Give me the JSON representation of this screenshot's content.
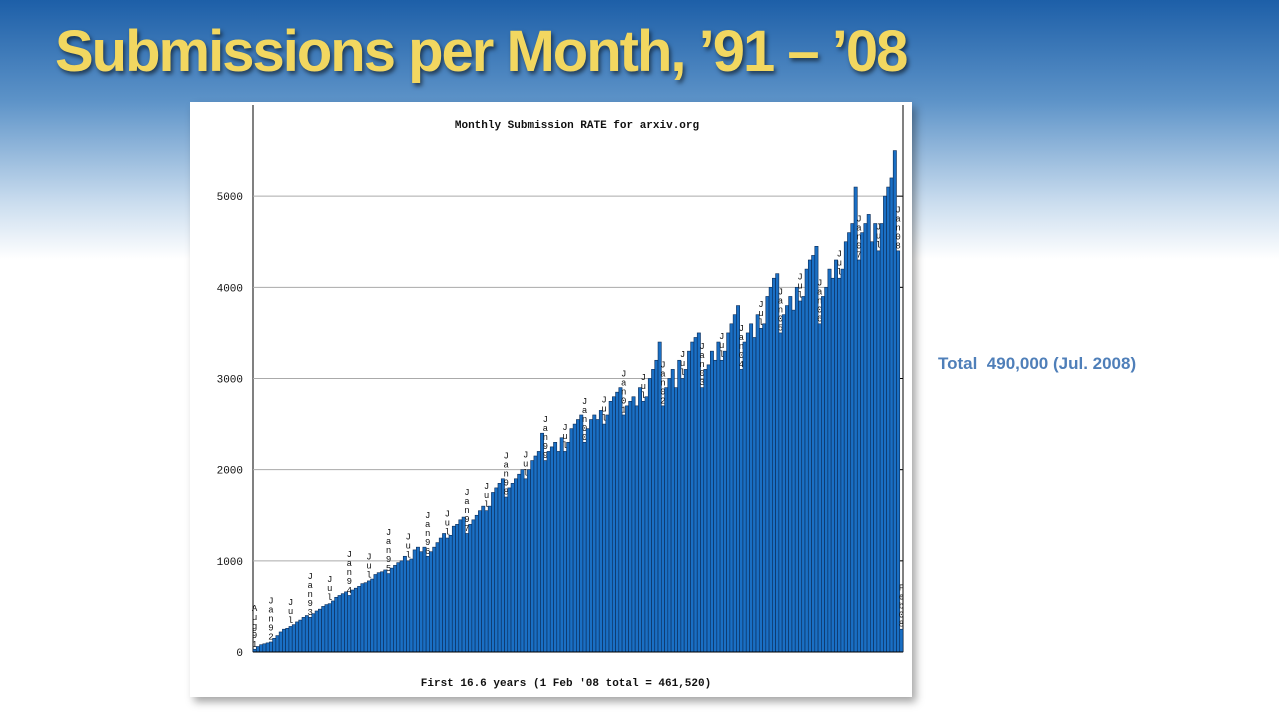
{
  "slide_title": "Submissions per Month, ’91 – ’08",
  "side_note": "Total  490,000 (Jul. 2008)",
  "chart_data": {
    "type": "bar",
    "title": "Monthly Submission RATE for arxiv.org",
    "x_label": "First 16.6 years (1 Feb '08 total = 461,520)",
    "color": "#1a6fc4",
    "grid": true,
    "ylim": [
      0,
      6000
    ],
    "yticks": [
      0,
      1000,
      2000,
      3000,
      4000,
      5000
    ],
    "categories": [
      "Aug91",
      null,
      null,
      null,
      null,
      "Jan92",
      null,
      null,
      null,
      null,
      null,
      "Jul",
      null,
      null,
      null,
      null,
      null,
      "Jan93",
      null,
      null,
      null,
      null,
      null,
      "Jul",
      null,
      null,
      null,
      null,
      null,
      "Jan94",
      null,
      null,
      null,
      null,
      null,
      "Jul",
      null,
      null,
      null,
      null,
      null,
      "Jan95",
      null,
      null,
      null,
      null,
      null,
      "Jul",
      null,
      null,
      null,
      null,
      null,
      "Jan96",
      null,
      null,
      null,
      null,
      null,
      "Jul",
      null,
      null,
      null,
      null,
      null,
      "Jan97",
      null,
      null,
      null,
      null,
      null,
      "Jul",
      null,
      null,
      null,
      null,
      null,
      "Jan98",
      null,
      null,
      null,
      null,
      null,
      "Jul",
      null,
      null,
      null,
      null,
      null,
      "Jan99",
      null,
      null,
      null,
      null,
      null,
      "Jul",
      null,
      null,
      null,
      null,
      null,
      "Jan00",
      null,
      null,
      null,
      null,
      null,
      "Jul",
      null,
      null,
      null,
      null,
      null,
      "Jan01",
      null,
      null,
      null,
      null,
      null,
      "Jul",
      null,
      null,
      null,
      null,
      null,
      "Jan02",
      null,
      null,
      null,
      null,
      null,
      "Jul",
      null,
      null,
      null,
      null,
      null,
      "Jan03",
      null,
      null,
      null,
      null,
      null,
      "Jul",
      null,
      null,
      null,
      null,
      null,
      "Jan04",
      null,
      null,
      null,
      null,
      null,
      "Jul",
      null,
      null,
      null,
      null,
      null,
      "Jan05",
      null,
      null,
      null,
      null,
      null,
      "Jul",
      null,
      null,
      null,
      null,
      null,
      "Jan06",
      null,
      null,
      null,
      null,
      null,
      "Jul",
      null,
      null,
      null,
      null,
      null,
      "Jan07",
      null,
      null,
      null,
      null,
      null,
      "Jul",
      null,
      null,
      null,
      null,
      null,
      "Jan08",
      "Feb08"
    ],
    "values": [
      30,
      60,
      80,
      90,
      100,
      110,
      150,
      180,
      220,
      250,
      260,
      280,
      300,
      330,
      350,
      380,
      400,
      380,
      420,
      450,
      470,
      500,
      520,
      530,
      560,
      600,
      620,
      640,
      660,
      620,
      680,
      700,
      720,
      750,
      760,
      780,
      800,
      850,
      870,
      880,
      900,
      860,
      920,
      950,
      980,
      1000,
      1050,
      1000,
      1020,
      1120,
      1150,
      1100,
      1150,
      1050,
      1100,
      1150,
      1200,
      1250,
      1300,
      1250,
      1280,
      1380,
      1400,
      1450,
      1480,
      1300,
      1400,
      1450,
      1500,
      1550,
      1600,
      1550,
      1600,
      1750,
      1800,
      1850,
      1900,
      1700,
      1800,
      1850,
      1900,
      1950,
      2000,
      1900,
      2000,
      2100,
      2150,
      2200,
      2400,
      2100,
      2200,
      2250,
      2300,
      2200,
      2350,
      2200,
      2300,
      2450,
      2500,
      2550,
      2600,
      2300,
      2450,
      2550,
      2600,
      2550,
      2650,
      2500,
      2600,
      2750,
      2800,
      2850,
      2900,
      2600,
      2700,
      2750,
      2800,
      2700,
      2900,
      2750,
      2800,
      3000,
      3100,
      3200,
      3400,
      2700,
      2900,
      3000,
      3100,
      2900,
      3200,
      3000,
      3100,
      3300,
      3400,
      3450,
      3500,
      2900,
      3100,
      3150,
      3300,
      3200,
      3400,
      3200,
      3300,
      3500,
      3600,
      3700,
      3800,
      3100,
      3400,
      3500,
      3600,
      3450,
      3700,
      3550,
      3600,
      3900,
      4000,
      4100,
      4150,
      3500,
      3700,
      3800,
      3900,
      3750,
      4000,
      3850,
      3900,
      4200,
      4300,
      4350,
      4450,
      3600,
      3900,
      4000,
      4200,
      4100,
      4300,
      4100,
      4200,
      4500,
      4600,
      4700,
      5100,
      4300,
      4600,
      4700,
      4800,
      4500,
      4700,
      4400,
      4700,
      5000,
      5100,
      5200,
      5500,
      4400,
      250
    ]
  }
}
